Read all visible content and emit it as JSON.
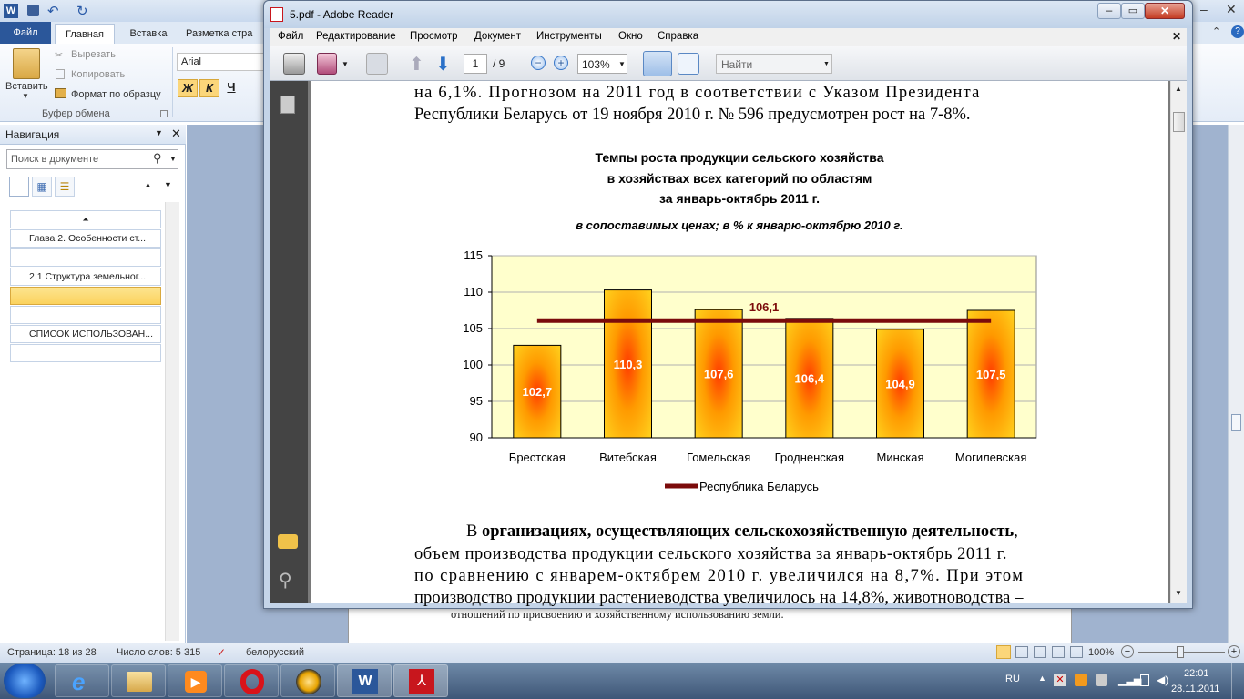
{
  "word": {
    "tabs": {
      "file": "Файл",
      "home": "Главная",
      "insert": "Вставка",
      "layout": "Разметка стра"
    },
    "ribbon": {
      "paste": "Вставить",
      "cut": "Вырезать",
      "copy": "Копировать",
      "format_painter": "Формат по образцу",
      "clipboard_group": "Буфер обмена",
      "font_name": "Arial",
      "bold": "Ж",
      "italic": "К",
      "underline": "Ч"
    },
    "nav": {
      "title": "Навигация",
      "search_placeholder": "Поиск в документе",
      "items": [
        "Глава 2. Особенности ст...",
        "2.1 Структура земельног...",
        "СПИСОК ИСПОЛЬЗОВАН..."
      ]
    },
    "doc_footnote": "отношений по присвоению и хозяйственному использованию земли.",
    "status": {
      "page": "Страница: 18 из 28",
      "words": "Число слов: 5 315",
      "language": "белорусский",
      "zoom": "100%"
    }
  },
  "reader": {
    "title": "5.pdf - Adobe Reader",
    "menu": [
      "Файл",
      "Редактирование",
      "Просмотр",
      "Документ",
      "Инструменты",
      "Окно",
      "Справка"
    ],
    "page_current": "1",
    "page_total": "/ 9",
    "zoom": "103%",
    "find_placeholder": "Найти",
    "text_top_line1": "на 6,1%. Прогнозом на 2011 год в соответствии с Указом Президента",
    "text_top_line2": "Республики Беларусь от 19 ноября 2010 г. № 596 предусмотрен рост на 7-8%.",
    "text_bottom_line1_pre": "В ",
    "text_bottom_line1_bold": "организациях, осуществляющих сельскохозяйственную деятельность",
    "text_bottom_line1_post": ",",
    "text_bottom_line2": "объем производства продукции сельского хозяйства за январь-октябрь 2011 г.",
    "text_bottom_line3": "по сравнению с январем-октябрем 2010 г. увеличился на 8,7%. При этом",
    "text_bottom_line4": "производство продукции растениеводства увеличилось на 14,8%, животноводства –"
  },
  "chart_data": {
    "type": "bar",
    "title_lines": [
      "Темпы роста продукции сельского хозяйства",
      "в хозяйствах всех категорий по областям",
      "за январь-октябрь 2011 г."
    ],
    "subtitle": "в сопоставимых ценах; в % к январю-октябрю 2010 г.",
    "categories": [
      "Брестская",
      "Витебская",
      "Гомельская",
      "Гродненская",
      "Минская",
      "Могилевская"
    ],
    "values": [
      102.7,
      110.3,
      107.6,
      106.4,
      104.9,
      107.5
    ],
    "value_labels": [
      "102,7",
      "110,3",
      "107,6",
      "106,4",
      "104,9",
      "107,5"
    ],
    "reference_line": {
      "name": "Республика Беларусь",
      "value": 106.1,
      "label": "106,1",
      "color": "#7b0b0b"
    },
    "ylim": [
      90,
      115
    ],
    "yticks": [
      "90",
      "95",
      "100",
      "105",
      "110",
      "115"
    ],
    "grid": true,
    "legend_position": "bottom",
    "bar_color": "#ffb400",
    "plot_background": "#ffffcc"
  },
  "taskbar": {
    "lang": "RU",
    "time": "22:01",
    "date": "28.11.2011"
  }
}
